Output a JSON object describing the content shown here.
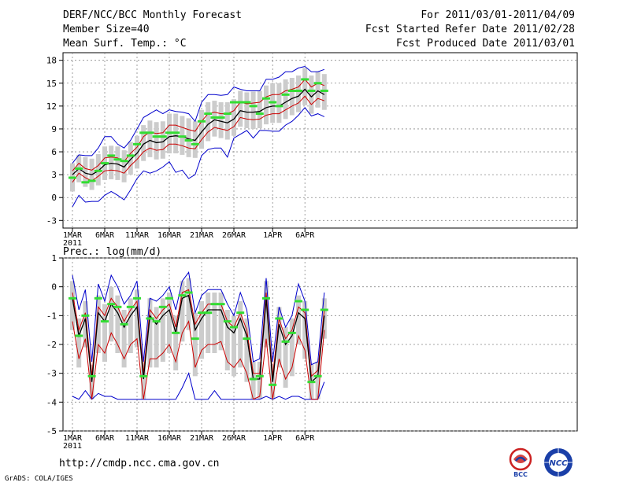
{
  "header": {
    "title": "DERF/NCC/BCC Monthly Forecast",
    "member_size": "Member Size=40",
    "variable": "Mean Surf. Temp.: °C",
    "period": "For 2011/03/01-2011/04/09",
    "started": "Fcst Started Refer Date 2011/02/28",
    "produced": "Fcst Produced Date 2011/03/01"
  },
  "precip_label": "Prec.: log(mm/d)",
  "footer": {
    "url": "http://cmdp.ncc.cma.gov.cn",
    "grads": "GrADS: COLA/IGES"
  },
  "logos": {
    "bcc": "BCC",
    "ncc": "NCC"
  },
  "colors": {
    "mean": "#000000",
    "spread": "#cc0000",
    "extreme": "#0000cc",
    "obs": "#33dd33",
    "box": "#cccccc"
  },
  "chart_data": [
    {
      "type": "line",
      "title": "Mean Surf. Temp.: °C",
      "days": 40,
      "xticks": [
        "1MAR",
        "6MAR",
        "11MAR",
        "16MAR",
        "21MAR",
        "26MAR",
        "1APR",
        "6APR"
      ],
      "xtick_days": [
        1,
        6,
        11,
        16,
        21,
        26,
        32,
        37
      ],
      "year_label": "2011",
      "ylim": [
        -4,
        19
      ],
      "yticks": [
        18,
        15,
        12,
        9,
        6,
        3,
        0,
        -3
      ],
      "series": [
        {
          "name": "mean",
          "values": [
            3,
            3.8,
            3.2,
            3,
            3.5,
            4.3,
            4.5,
            4.4,
            4,
            5,
            5.8,
            7,
            7.5,
            7.2,
            7.3,
            8,
            8.1,
            8,
            7.7,
            7.5,
            8.6,
            9.6,
            10.2,
            10,
            9.8,
            10.3,
            11.4,
            11.2,
            11.2,
            11.3,
            11.8,
            12,
            12,
            12.5,
            13,
            13.3,
            14.2,
            13.2,
            14,
            13.5
          ]
        },
        {
          "name": "upper",
          "values": [
            3.5,
            4.5,
            3.8,
            3.6,
            4.2,
            5.2,
            5.3,
            5.2,
            4.7,
            5.8,
            6.6,
            8,
            8.6,
            8.4,
            8.5,
            9.5,
            9.5,
            9.2,
            8.9,
            8.7,
            10,
            11,
            11.2,
            11,
            11,
            11.4,
            12.5,
            12.3,
            12.4,
            12.5,
            13.2,
            13.5,
            13.5,
            14,
            14.2,
            14.5,
            15.5,
            14.5,
            15,
            14.7
          ]
        },
        {
          "name": "lower",
          "values": [
            2,
            3.2,
            2.6,
            2.2,
            2.8,
            3.5,
            3.6,
            3.5,
            3.2,
            4.2,
            5,
            6,
            6.5,
            6.2,
            6.3,
            7,
            7,
            6.8,
            6.5,
            6.4,
            7.6,
            8.6,
            9.2,
            9,
            8.8,
            9.3,
            10.5,
            10.3,
            10.2,
            10.3,
            10.8,
            11,
            11,
            11.5,
            12,
            12.4,
            13.3,
            12.2,
            13,
            12.7
          ]
        },
        {
          "name": "max",
          "values": [
            4.5,
            5.6,
            5.5,
            5.5,
            6.5,
            8,
            8,
            7,
            6.5,
            7.5,
            9,
            10.5,
            11,
            11.5,
            11,
            11.5,
            11.3,
            11.2,
            11,
            10,
            12.5,
            13.5,
            13.5,
            13.4,
            13.5,
            14.5,
            14.2,
            14,
            14,
            14,
            15.5,
            15.5,
            15.8,
            16.5,
            16.5,
            17,
            17.2,
            16.5,
            16.5,
            16.8
          ]
        },
        {
          "name": "min",
          "values": [
            -1.2,
            0.3,
            -0.6,
            -0.5,
            -0.5,
            0.3,
            0.8,
            0.3,
            -0.3,
            1,
            2.5,
            3.5,
            3.2,
            3.5,
            4,
            4.7,
            3.3,
            3.6,
            2.5,
            3,
            5.5,
            6.3,
            6.5,
            6.5,
            5.3,
            7.8,
            8.3,
            8.8,
            7.8,
            8.8,
            8.8,
            8.7,
            8.7,
            9.5,
            10,
            10.8,
            11.8,
            10.7,
            11,
            10.6
          ]
        },
        {
          "name": "observed",
          "values": [
            2.6,
            3.8,
            2,
            2.2,
            3.5,
            4.5,
            5.5,
            5,
            4.8,
            5.5,
            7,
            8.5,
            8.5,
            8,
            8,
            8.5,
            8.5,
            8,
            7.5,
            7,
            10,
            11,
            10.5,
            10.5,
            11,
            12.5,
            12.5,
            12.5,
            12,
            11,
            13,
            12.5,
            12,
            13.5,
            14,
            14,
            15.5,
            14,
            15,
            14
          ]
        }
      ]
    },
    {
      "type": "line",
      "title": "Prec.: log(mm/d)",
      "days": 40,
      "xticks": [
        "1MAR",
        "6MAR",
        "11MAR",
        "16MAR",
        "21MAR",
        "26MAR",
        "1APR",
        "6APR"
      ],
      "xtick_days": [
        1,
        6,
        11,
        16,
        21,
        26,
        32,
        37
      ],
      "year_label": "2011",
      "ylim": [
        -5,
        1
      ],
      "yticks": [
        1,
        0,
        -1,
        -2,
        -3,
        -4,
        -5
      ],
      "series": [
        {
          "name": "mean",
          "values": [
            -0.4,
            -1.7,
            -1.1,
            -3.3,
            -0.9,
            -1.2,
            -0.6,
            -0.9,
            -1.4,
            -1,
            -0.7,
            -3.2,
            -1,
            -1.3,
            -1,
            -0.8,
            -1.6,
            -0.4,
            -0.3,
            -1.5,
            -1.1,
            -0.8,
            -0.8,
            -0.8,
            -1.4,
            -1.6,
            -1.1,
            -1.7,
            -3.2,
            -3.2,
            -0.4,
            -3.3,
            -1.3,
            -2,
            -1.7,
            -0.9,
            -1.1,
            -3.3,
            -3.1,
            -1
          ]
        },
        {
          "name": "upper",
          "values": [
            -0.2,
            -1.5,
            -0.9,
            -3.1,
            -0.7,
            -1,
            -0.4,
            -0.7,
            -1.2,
            -0.8,
            -0.5,
            -3,
            -0.8,
            -1.1,
            -0.8,
            -0.6,
            -1.4,
            -0.2,
            -0.1,
            -1.3,
            -0.9,
            -0.6,
            -0.6,
            -0.6,
            -1.2,
            -1.4,
            -0.9,
            -1.5,
            -3,
            -3,
            -0.2,
            -3.1,
            -1.1,
            -1.8,
            -1.5,
            -0.7,
            -0.9,
            -3.1,
            -2.9,
            -0.8
          ]
        },
        {
          "name": "lower",
          "values": [
            -1.2,
            -2.5,
            -1.8,
            -3.9,
            -2,
            -2.3,
            -1.6,
            -2,
            -2.5,
            -2,
            -1.8,
            -3.9,
            -2.5,
            -2.5,
            -2.3,
            -2,
            -2.6,
            -1.6,
            -1.2,
            -2.8,
            -2.2,
            -2,
            -2,
            -1.9,
            -2.6,
            -2.8,
            -2.5,
            -3,
            -3.9,
            -3.8,
            -1.8,
            -3.9,
            -2.5,
            -3.2,
            -2.8,
            -1.7,
            -2.2,
            -3.9,
            -3.9,
            -1.5
          ]
        },
        {
          "name": "max",
          "values": [
            0.4,
            -0.8,
            -0.1,
            -2.6,
            0.1,
            -0.5,
            0.4,
            0,
            -0.6,
            -0.3,
            0.2,
            -2.6,
            -0.4,
            -0.5,
            -0.3,
            0,
            -0.8,
            0.2,
            0.5,
            -0.9,
            -0.3,
            -0.1,
            -0.1,
            -0.1,
            -0.6,
            -1,
            -0.2,
            -0.8,
            -2.6,
            -2.5,
            0.3,
            -2.6,
            -0.7,
            -1.4,
            -1,
            0.1,
            -0.5,
            -2.7,
            -2.6,
            -0.2
          ]
        },
        {
          "name": "min",
          "values": [
            -3.8,
            -3.9,
            -3.6,
            -3.9,
            -3.7,
            -3.8,
            -3.8,
            -3.9,
            -3.9,
            -3.9,
            -3.9,
            -3.9,
            -3.9,
            -3.9,
            -3.9,
            -3.9,
            -3.9,
            -3.5,
            -3,
            -3.9,
            -3.9,
            -3.9,
            -3.6,
            -3.9,
            -3.9,
            -3.9,
            -3.9,
            -3.9,
            -3.9,
            -3.9,
            -3.8,
            -3.9,
            -3.8,
            -3.9,
            -3.8,
            -3.8,
            -3.9,
            -3.9,
            -3.9,
            -3.3
          ]
        },
        {
          "name": "observed",
          "values": [
            -0.4,
            -1.7,
            -1,
            -3.1,
            -0.4,
            -1.2,
            -0.6,
            -0.7,
            -1.3,
            -0.7,
            -0.4,
            -3.1,
            -1.1,
            -1.2,
            -0.7,
            -0.4,
            -1.6,
            -0.3,
            -0.2,
            -1.8,
            -0.9,
            -0.9,
            -0.6,
            -0.6,
            -1.2,
            -1.4,
            -0.9,
            -1.8,
            -3.2,
            -3.1,
            -0.4,
            -3.4,
            -1.1,
            -1.9,
            -1.6,
            -0.5,
            -0.8,
            -3.3,
            -3.1,
            -0.8
          ]
        }
      ]
    }
  ]
}
